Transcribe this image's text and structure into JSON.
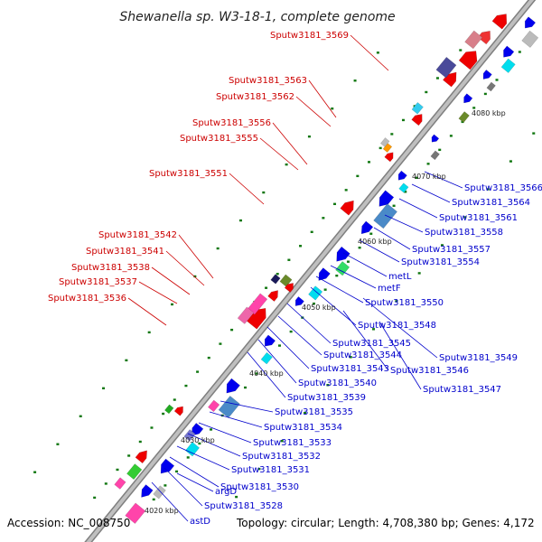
{
  "title": "Shewanella sp. W3-18-1, complete genome",
  "footer": {
    "accession": "Accession: NC_008750",
    "topology": "Topology: circular; Length: 4,708,380 bp; Genes: 4,172"
  },
  "ticks": [
    "4020 kbp",
    "4030 kbp",
    "4040 kbp",
    "4050 kbp",
    "4060 kbp",
    "4070 kbp",
    "4080 kbp"
  ],
  "red_labels": [
    "Sputw3181_3569",
    "Sputw3181_3563",
    "Sputw3181_3562",
    "Sputw3181_3556",
    "Sputw3181_3555",
    "Sputw3181_3551",
    "Sputw3181_3542",
    "Sputw3181_3541",
    "Sputw3181_3538",
    "Sputw3181_3537",
    "Sputw3181_3536"
  ],
  "blue_labels": [
    "Sputw3181_3566",
    "Sputw3181_3564",
    "Sputw3181_3561",
    "Sputw3181_3558",
    "Sputw3181_3557",
    "Sputw3181_3554",
    "metL",
    "metF",
    "Sputw3181_3550",
    "Sputw3181_3548",
    "Sputw3181_3545",
    "Sputw3181_3549",
    "Sputw3181_3544",
    "Sputw3181_3546",
    "Sputw3181_3543",
    "Sputw3181_3540",
    "Sputw3181_3547",
    "Sputw3181_3539",
    "Sputw3181_3535",
    "Sputw3181_3534",
    "Sputw3181_3533",
    "Sputw3181_3532",
    "Sputw3181_3531",
    "Sputw3181_3530",
    "argD",
    "Sputw3181_3528",
    "astD"
  ],
  "colors": {
    "forward_strand": "#ee0000",
    "reverse_strand": "#0000ee",
    "backbone": "#999999",
    "tick_mark": "#117711",
    "red_label": "#cc0000",
    "blue_label": "#0000cc"
  }
}
